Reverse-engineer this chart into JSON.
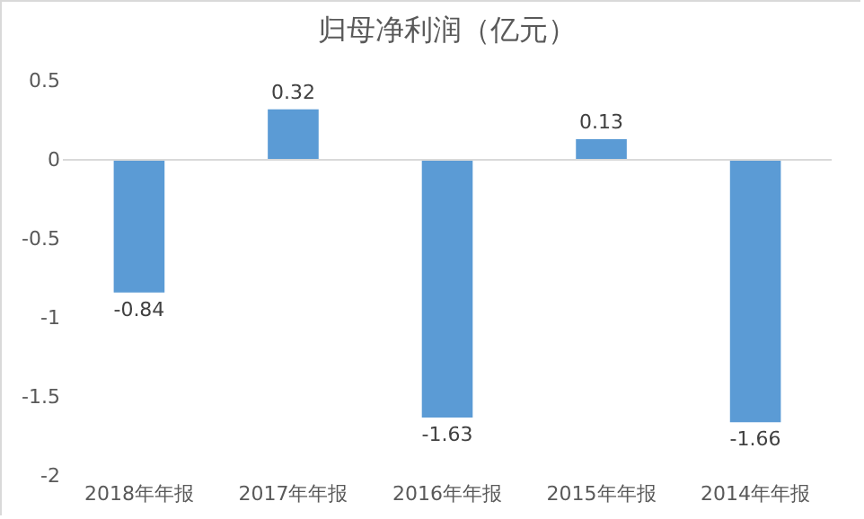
{
  "chart_data": {
    "type": "bar",
    "title": "归母净利润（亿元）",
    "categories": [
      "2018年年报",
      "2017年年报",
      "2016年年报",
      "2015年年报",
      "2014年年报"
    ],
    "values": [
      -0.84,
      0.32,
      -1.63,
      0.13,
      -1.66
    ],
    "color": "#5b9bd5",
    "ylim": [
      -2,
      0.5
    ],
    "yticks": [
      -2,
      -1.5,
      -1,
      -0.5,
      0,
      0.5
    ],
    "data_labels": true,
    "ref_lines": [
      {
        "axis": "y",
        "value": 0,
        "color": "#d9d9d9"
      }
    ]
  }
}
